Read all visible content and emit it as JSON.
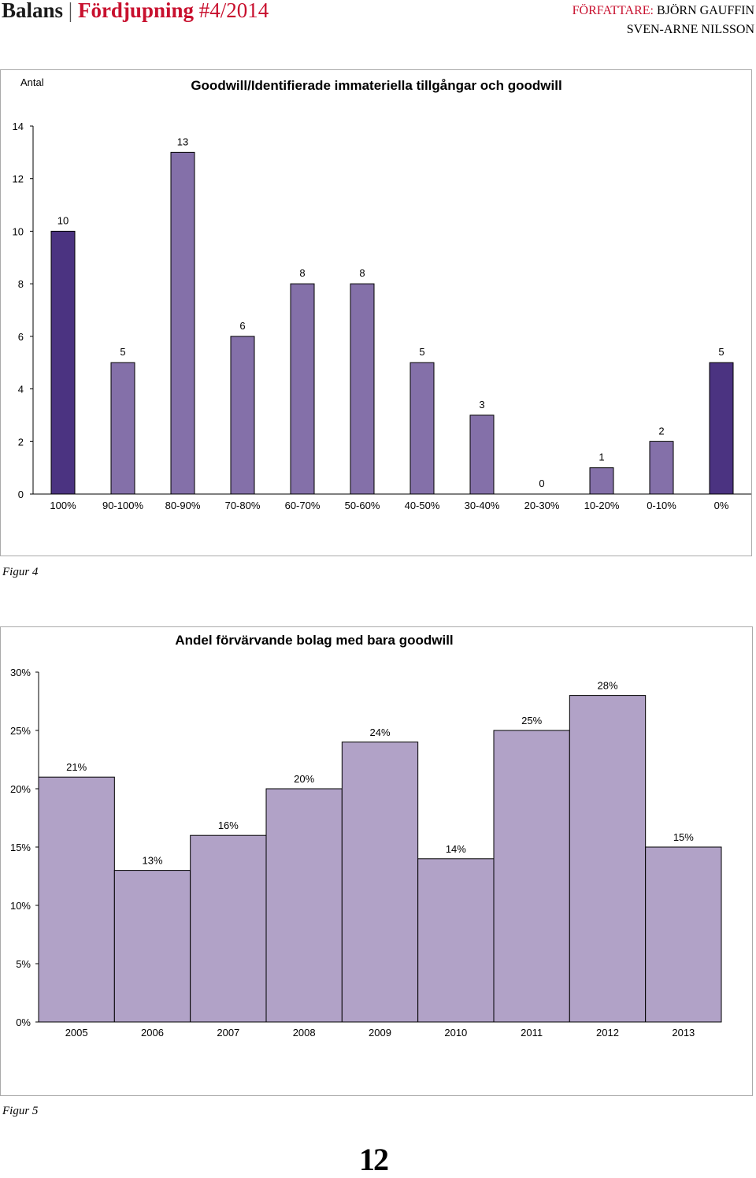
{
  "header": {
    "brand": "Balans",
    "section": "Fördjupning",
    "issue": "#4/2014",
    "author_role": "FÖRFATTARE:",
    "author1": "BJÖRN GAUFFIN",
    "author2": "SVEN-ARNE NILSSON"
  },
  "figure4": {
    "caption": "Figur 4",
    "chart_data": {
      "type": "bar",
      "title": "Goodwill/Identifierade immateriella tillgångar och goodwill",
      "ylabel": "Antal",
      "xlabel": "",
      "categories": [
        "100%",
        "90-100%",
        "80-90%",
        "70-80%",
        "60-70%",
        "50-60%",
        "40-50%",
        "30-40%",
        "20-30%",
        "10-20%",
        "0-10%",
        "0%"
      ],
      "values": [
        10,
        5,
        13,
        6,
        8,
        8,
        5,
        3,
        0,
        1,
        2,
        5
      ],
      "ylim": [
        0,
        14
      ],
      "yticks": [
        "0",
        "2",
        "4",
        "6",
        "8",
        "10",
        "12",
        "14"
      ],
      "colors": [
        "#4b3381",
        "#8470a9",
        "#8470a9",
        "#8470a9",
        "#8470a9",
        "#8470a9",
        "#8470a9",
        "#8470a9",
        "#8470a9",
        "#8470a9",
        "#8470a9",
        "#4b3381"
      ]
    }
  },
  "figure5": {
    "caption": "Figur 5",
    "chart_data": {
      "type": "bar",
      "title": "Andel förvärvande bolag med bara goodwill",
      "xlabel": "",
      "ylabel": "",
      "categories": [
        "2005",
        "2006",
        "2007",
        "2008",
        "2009",
        "2010",
        "2011",
        "2012",
        "2013"
      ],
      "values": [
        21,
        13,
        16,
        20,
        24,
        14,
        25,
        28,
        15
      ],
      "value_labels": [
        "21%",
        "13%",
        "16%",
        "20%",
        "24%",
        "14%",
        "25%",
        "28%",
        "15%"
      ],
      "ylim": [
        0,
        30
      ],
      "yticks": [
        "0%",
        "5%",
        "10%",
        "15%",
        "20%",
        "25%",
        "30%"
      ],
      "color": "#b1a2c7"
    }
  },
  "page_number": "12"
}
